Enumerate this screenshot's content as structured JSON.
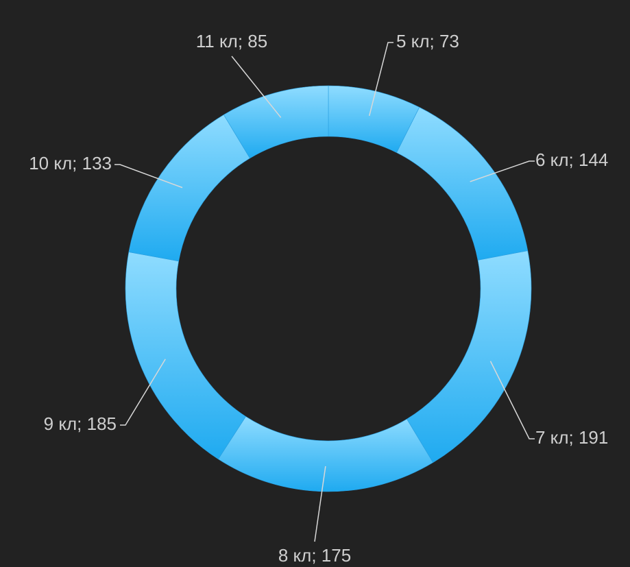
{
  "chart_data": {
    "type": "pie",
    "donut": true,
    "categories": [
      "5 кл",
      "6 кл",
      "7 кл",
      "8 кл",
      "9 кл",
      "10 кл",
      "11 кл"
    ],
    "values": [
      73,
      144,
      191,
      175,
      185,
      133,
      85
    ],
    "labels": [
      "5 кл; 73",
      "6 кл; 144",
      "7 кл; 191",
      "8 кл; 175",
      "9 кл; 185",
      "10 кл; 133",
      "11 кл; 85"
    ],
    "title": "",
    "colors": {
      "background": "#222222",
      "slice_top": "#8fdcff",
      "slice_bottom": "#1faaf0",
      "label_text": "#cfcfcf",
      "leader_line": "#d8d8d8"
    },
    "legend": "none",
    "start_angle": "top, clockwise"
  }
}
